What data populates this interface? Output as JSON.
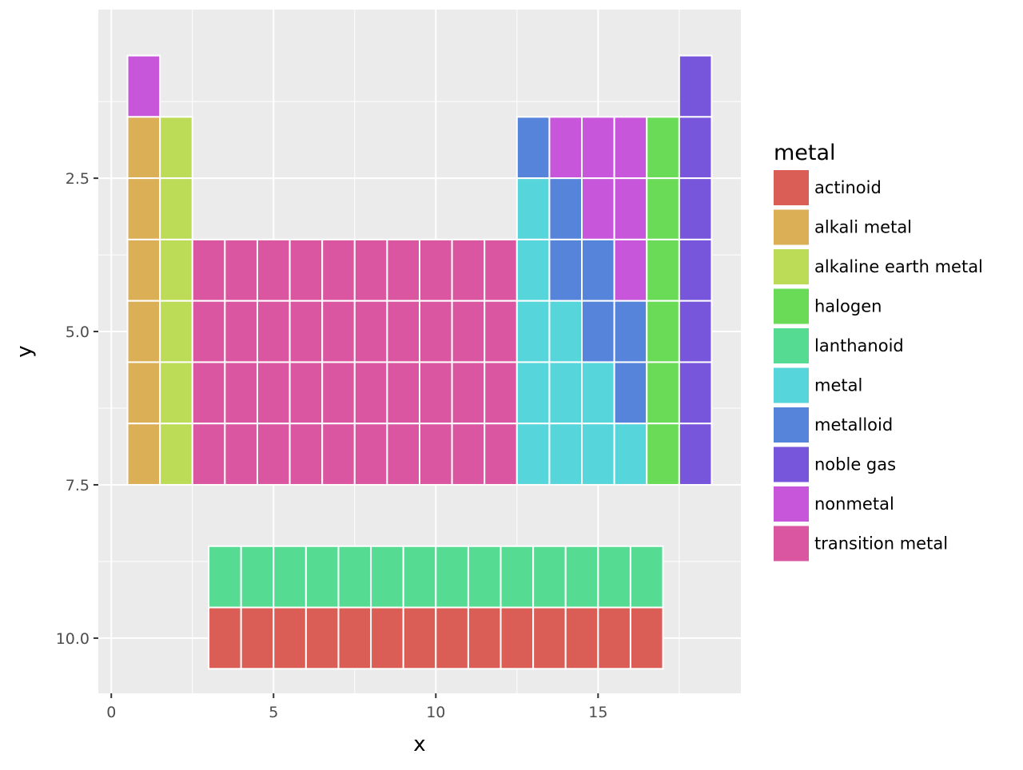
{
  "chart_data": {
    "type": "heatmap",
    "title": "",
    "xlabel": "x",
    "ylabel": "y",
    "xlim": [
      -0.4,
      19.4
    ],
    "ylim": [
      10.9,
      -0.25
    ],
    "y_reversed": true,
    "x_ticks": [
      0,
      5,
      10,
      15
    ],
    "x_tick_labels": [
      "0",
      "5",
      "10",
      "15"
    ],
    "y_ticks": [
      2.5,
      5.0,
      7.5,
      10.0
    ],
    "y_tick_labels": [
      "2.5",
      "5.0",
      "7.5",
      "10.0"
    ],
    "grid": true,
    "legend": {
      "title": "metal",
      "placement": "right",
      "entries": [
        "actinoid",
        "alkali metal",
        "alkaline earth metal",
        "halogen",
        "lanthanoid",
        "metal",
        "metalloid",
        "noble gas",
        "nonmetal",
        "transition metal"
      ]
    },
    "colors": {
      "actinoid": "#DB5E56",
      "alkali metal": "#DBAF56",
      "alkaline earth metal": "#BCDB56",
      "halogen": "#6ADB56",
      "lanthanoid": "#56DB93",
      "metal": "#56D5DB",
      "metalloid": "#5684DB",
      "noble gas": "#7756DB",
      "nonmetal": "#C856DB",
      "transition metal": "#DB56A1"
    },
    "cells": [
      {
        "x": 1,
        "y": 1,
        "metal": "nonmetal"
      },
      {
        "x": 18,
        "y": 1,
        "metal": "noble gas"
      },
      {
        "x": 1,
        "y": 2,
        "metal": "alkali metal"
      },
      {
        "x": 2,
        "y": 2,
        "metal": "alkaline earth metal"
      },
      {
        "x": 13,
        "y": 2,
        "metal": "metalloid"
      },
      {
        "x": 14,
        "y": 2,
        "metal": "nonmetal"
      },
      {
        "x": 15,
        "y": 2,
        "metal": "nonmetal"
      },
      {
        "x": 16,
        "y": 2,
        "metal": "nonmetal"
      },
      {
        "x": 17,
        "y": 2,
        "metal": "halogen"
      },
      {
        "x": 18,
        "y": 2,
        "metal": "noble gas"
      },
      {
        "x": 1,
        "y": 3,
        "metal": "alkali metal"
      },
      {
        "x": 2,
        "y": 3,
        "metal": "alkaline earth metal"
      },
      {
        "x": 13,
        "y": 3,
        "metal": "metal"
      },
      {
        "x": 14,
        "y": 3,
        "metal": "metalloid"
      },
      {
        "x": 15,
        "y": 3,
        "metal": "nonmetal"
      },
      {
        "x": 16,
        "y": 3,
        "metal": "nonmetal"
      },
      {
        "x": 17,
        "y": 3,
        "metal": "halogen"
      },
      {
        "x": 18,
        "y": 3,
        "metal": "noble gas"
      },
      {
        "x": 1,
        "y": 4,
        "metal": "alkali metal"
      },
      {
        "x": 2,
        "y": 4,
        "metal": "alkaline earth metal"
      },
      {
        "x": 3,
        "y": 4,
        "metal": "transition metal"
      },
      {
        "x": 4,
        "y": 4,
        "metal": "transition metal"
      },
      {
        "x": 5,
        "y": 4,
        "metal": "transition metal"
      },
      {
        "x": 6,
        "y": 4,
        "metal": "transition metal"
      },
      {
        "x": 7,
        "y": 4,
        "metal": "transition metal"
      },
      {
        "x": 8,
        "y": 4,
        "metal": "transition metal"
      },
      {
        "x": 9,
        "y": 4,
        "metal": "transition metal"
      },
      {
        "x": 10,
        "y": 4,
        "metal": "transition metal"
      },
      {
        "x": 11,
        "y": 4,
        "metal": "transition metal"
      },
      {
        "x": 12,
        "y": 4,
        "metal": "transition metal"
      },
      {
        "x": 13,
        "y": 4,
        "metal": "metal"
      },
      {
        "x": 14,
        "y": 4,
        "metal": "metalloid"
      },
      {
        "x": 15,
        "y": 4,
        "metal": "metalloid"
      },
      {
        "x": 16,
        "y": 4,
        "metal": "nonmetal"
      },
      {
        "x": 17,
        "y": 4,
        "metal": "halogen"
      },
      {
        "x": 18,
        "y": 4,
        "metal": "noble gas"
      },
      {
        "x": 1,
        "y": 5,
        "metal": "alkali metal"
      },
      {
        "x": 2,
        "y": 5,
        "metal": "alkaline earth metal"
      },
      {
        "x": 3,
        "y": 5,
        "metal": "transition metal"
      },
      {
        "x": 4,
        "y": 5,
        "metal": "transition metal"
      },
      {
        "x": 5,
        "y": 5,
        "metal": "transition metal"
      },
      {
        "x": 6,
        "y": 5,
        "metal": "transition metal"
      },
      {
        "x": 7,
        "y": 5,
        "metal": "transition metal"
      },
      {
        "x": 8,
        "y": 5,
        "metal": "transition metal"
      },
      {
        "x": 9,
        "y": 5,
        "metal": "transition metal"
      },
      {
        "x": 10,
        "y": 5,
        "metal": "transition metal"
      },
      {
        "x": 11,
        "y": 5,
        "metal": "transition metal"
      },
      {
        "x": 12,
        "y": 5,
        "metal": "transition metal"
      },
      {
        "x": 13,
        "y": 5,
        "metal": "metal"
      },
      {
        "x": 14,
        "y": 5,
        "metal": "metal"
      },
      {
        "x": 15,
        "y": 5,
        "metal": "metalloid"
      },
      {
        "x": 16,
        "y": 5,
        "metal": "metalloid"
      },
      {
        "x": 17,
        "y": 5,
        "metal": "halogen"
      },
      {
        "x": 18,
        "y": 5,
        "metal": "noble gas"
      },
      {
        "x": 1,
        "y": 6,
        "metal": "alkali metal"
      },
      {
        "x": 2,
        "y": 6,
        "metal": "alkaline earth metal"
      },
      {
        "x": 3,
        "y": 6,
        "metal": "transition metal"
      },
      {
        "x": 4,
        "y": 6,
        "metal": "transition metal"
      },
      {
        "x": 5,
        "y": 6,
        "metal": "transition metal"
      },
      {
        "x": 6,
        "y": 6,
        "metal": "transition metal"
      },
      {
        "x": 7,
        "y": 6,
        "metal": "transition metal"
      },
      {
        "x": 8,
        "y": 6,
        "metal": "transition metal"
      },
      {
        "x": 9,
        "y": 6,
        "metal": "transition metal"
      },
      {
        "x": 10,
        "y": 6,
        "metal": "transition metal"
      },
      {
        "x": 11,
        "y": 6,
        "metal": "transition metal"
      },
      {
        "x": 12,
        "y": 6,
        "metal": "transition metal"
      },
      {
        "x": 13,
        "y": 6,
        "metal": "metal"
      },
      {
        "x": 14,
        "y": 6,
        "metal": "metal"
      },
      {
        "x": 15,
        "y": 6,
        "metal": "metal"
      },
      {
        "x": 16,
        "y": 6,
        "metal": "metalloid"
      },
      {
        "x": 17,
        "y": 6,
        "metal": "halogen"
      },
      {
        "x": 18,
        "y": 6,
        "metal": "noble gas"
      },
      {
        "x": 1,
        "y": 7,
        "metal": "alkali metal"
      },
      {
        "x": 2,
        "y": 7,
        "metal": "alkaline earth metal"
      },
      {
        "x": 3,
        "y": 7,
        "metal": "transition metal"
      },
      {
        "x": 4,
        "y": 7,
        "metal": "transition metal"
      },
      {
        "x": 5,
        "y": 7,
        "metal": "transition metal"
      },
      {
        "x": 6,
        "y": 7,
        "metal": "transition metal"
      },
      {
        "x": 7,
        "y": 7,
        "metal": "transition metal"
      },
      {
        "x": 8,
        "y": 7,
        "metal": "transition metal"
      },
      {
        "x": 9,
        "y": 7,
        "metal": "transition metal"
      },
      {
        "x": 10,
        "y": 7,
        "metal": "transition metal"
      },
      {
        "x": 11,
        "y": 7,
        "metal": "transition metal"
      },
      {
        "x": 12,
        "y": 7,
        "metal": "transition metal"
      },
      {
        "x": 13,
        "y": 7,
        "metal": "metal"
      },
      {
        "x": 14,
        "y": 7,
        "metal": "metal"
      },
      {
        "x": 15,
        "y": 7,
        "metal": "metal"
      },
      {
        "x": 16,
        "y": 7,
        "metal": "metal"
      },
      {
        "x": 17,
        "y": 7,
        "metal": "halogen"
      },
      {
        "x": 18,
        "y": 7,
        "metal": "noble gas"
      },
      {
        "x": 3.5,
        "y": 9,
        "metal": "lanthanoid"
      },
      {
        "x": 4.5,
        "y": 9,
        "metal": "lanthanoid"
      },
      {
        "x": 5.5,
        "y": 9,
        "metal": "lanthanoid"
      },
      {
        "x": 6.5,
        "y": 9,
        "metal": "lanthanoid"
      },
      {
        "x": 7.5,
        "y": 9,
        "metal": "lanthanoid"
      },
      {
        "x": 8.5,
        "y": 9,
        "metal": "lanthanoid"
      },
      {
        "x": 9.5,
        "y": 9,
        "metal": "lanthanoid"
      },
      {
        "x": 10.5,
        "y": 9,
        "metal": "lanthanoid"
      },
      {
        "x": 11.5,
        "y": 9,
        "metal": "lanthanoid"
      },
      {
        "x": 12.5,
        "y": 9,
        "metal": "lanthanoid"
      },
      {
        "x": 13.5,
        "y": 9,
        "metal": "lanthanoid"
      },
      {
        "x": 14.5,
        "y": 9,
        "metal": "lanthanoid"
      },
      {
        "x": 15.5,
        "y": 9,
        "metal": "lanthanoid"
      },
      {
        "x": 16.5,
        "y": 9,
        "metal": "lanthanoid"
      },
      {
        "x": 3.5,
        "y": 10,
        "metal": "actinoid"
      },
      {
        "x": 4.5,
        "y": 10,
        "metal": "actinoid"
      },
      {
        "x": 5.5,
        "y": 10,
        "metal": "actinoid"
      },
      {
        "x": 6.5,
        "y": 10,
        "metal": "actinoid"
      },
      {
        "x": 7.5,
        "y": 10,
        "metal": "actinoid"
      },
      {
        "x": 8.5,
        "y": 10,
        "metal": "actinoid"
      },
      {
        "x": 9.5,
        "y": 10,
        "metal": "actinoid"
      },
      {
        "x": 10.5,
        "y": 10,
        "metal": "actinoid"
      },
      {
        "x": 11.5,
        "y": 10,
        "metal": "actinoid"
      },
      {
        "x": 12.5,
        "y": 10,
        "metal": "actinoid"
      },
      {
        "x": 13.5,
        "y": 10,
        "metal": "actinoid"
      },
      {
        "x": 14.5,
        "y": 10,
        "metal": "actinoid"
      },
      {
        "x": 15.5,
        "y": 10,
        "metal": "actinoid"
      },
      {
        "x": 16.5,
        "y": 10,
        "metal": "actinoid"
      }
    ]
  }
}
